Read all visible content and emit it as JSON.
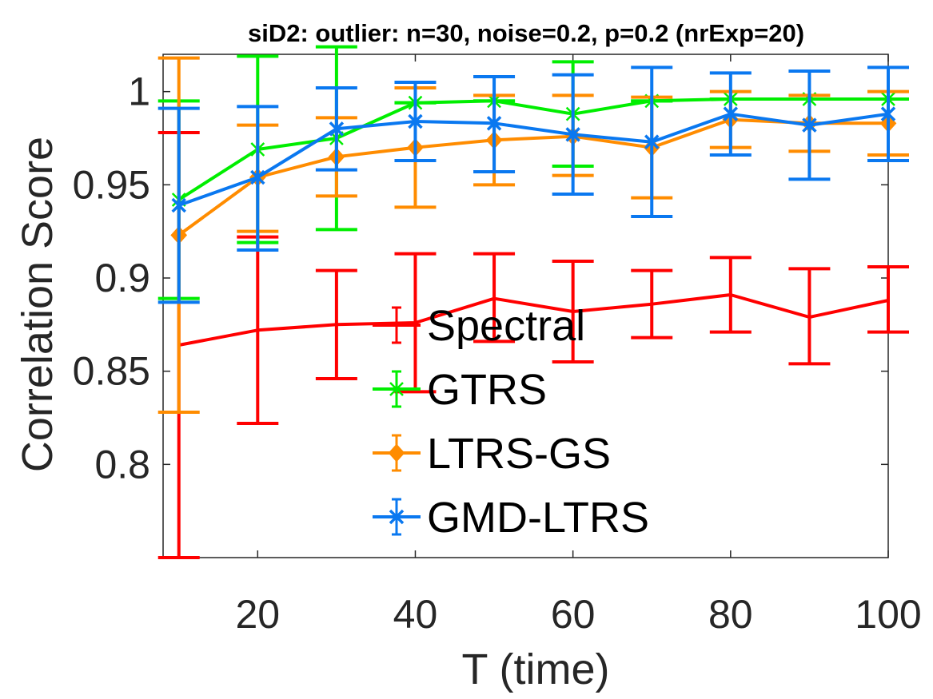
{
  "chart_data": {
    "type": "line",
    "title": "siD2: outlier: n=30, noise=0.2, p=0.2 (nrExp=20)",
    "xlabel": "T (time)",
    "ylabel": "Correlation Score",
    "xlim": [
      8,
      100
    ],
    "ylim": [
      0.75,
      1.02
    ],
    "xticks": [
      20,
      40,
      60,
      80,
      100
    ],
    "xtick_labels": [
      "20",
      "40",
      "60",
      "80",
      "100"
    ],
    "yticks": [
      0.8,
      0.85,
      0.9,
      0.95,
      1.0
    ],
    "ytick_labels": [
      "0.8",
      "0.85",
      "0.9",
      "0.95",
      "1"
    ],
    "grid": false,
    "legend_position": "center",
    "x": [
      10,
      20,
      30,
      40,
      50,
      60,
      70,
      80,
      90,
      100
    ],
    "series": [
      {
        "name": "Spectral",
        "color": "#ff0000",
        "marker": "none",
        "values": [
          0.864,
          0.872,
          0.875,
          0.876,
          0.889,
          0.882,
          0.886,
          0.891,
          0.879,
          0.888
        ],
        "lower": [
          0.75,
          0.822,
          0.846,
          0.839,
          0.866,
          0.855,
          0.868,
          0.871,
          0.854,
          0.871
        ],
        "upper": [
          0.978,
          0.922,
          0.904,
          0.913,
          0.913,
          0.909,
          0.904,
          0.911,
          0.905,
          0.906
        ]
      },
      {
        "name": "GTRS",
        "color": "#00ee00",
        "marker": "star",
        "values": [
          0.942,
          0.969,
          0.975,
          0.994,
          0.995,
          0.988,
          0.995,
          0.996,
          0.996,
          0.996
        ],
        "lower": [
          0.889,
          0.919,
          0.926,
          0.994,
          0.995,
          0.96,
          0.995,
          0.996,
          0.996,
          0.996
        ],
        "upper": [
          0.995,
          1.019,
          1.024,
          0.994,
          0.995,
          1.016,
          0.995,
          0.996,
          0.996,
          0.996
        ]
      },
      {
        "name": "LTRS-GS",
        "color": "#ff8c00",
        "marker": "diamond",
        "values": [
          0.923,
          0.954,
          0.965,
          0.97,
          0.974,
          0.976,
          0.97,
          0.985,
          0.983,
          0.983
        ],
        "lower": [
          0.828,
          0.925,
          0.944,
          0.938,
          0.95,
          0.955,
          0.943,
          0.97,
          0.968,
          0.966
        ],
        "upper": [
          1.018,
          0.982,
          0.986,
          1.002,
          0.998,
          0.998,
          0.997,
          1.0,
          0.998,
          1.0
        ]
      },
      {
        "name": "GMD-LTRS",
        "color": "#0a78f0",
        "marker": "x",
        "values": [
          0.939,
          0.954,
          0.98,
          0.984,
          0.983,
          0.977,
          0.973,
          0.988,
          0.982,
          0.988
        ],
        "lower": [
          0.887,
          0.915,
          0.958,
          0.963,
          0.957,
          0.945,
          0.933,
          0.966,
          0.953,
          0.963
        ],
        "upper": [
          0.991,
          0.992,
          1.002,
          1.005,
          1.008,
          1.009,
          1.013,
          1.01,
          1.011,
          1.013
        ]
      }
    ]
  }
}
